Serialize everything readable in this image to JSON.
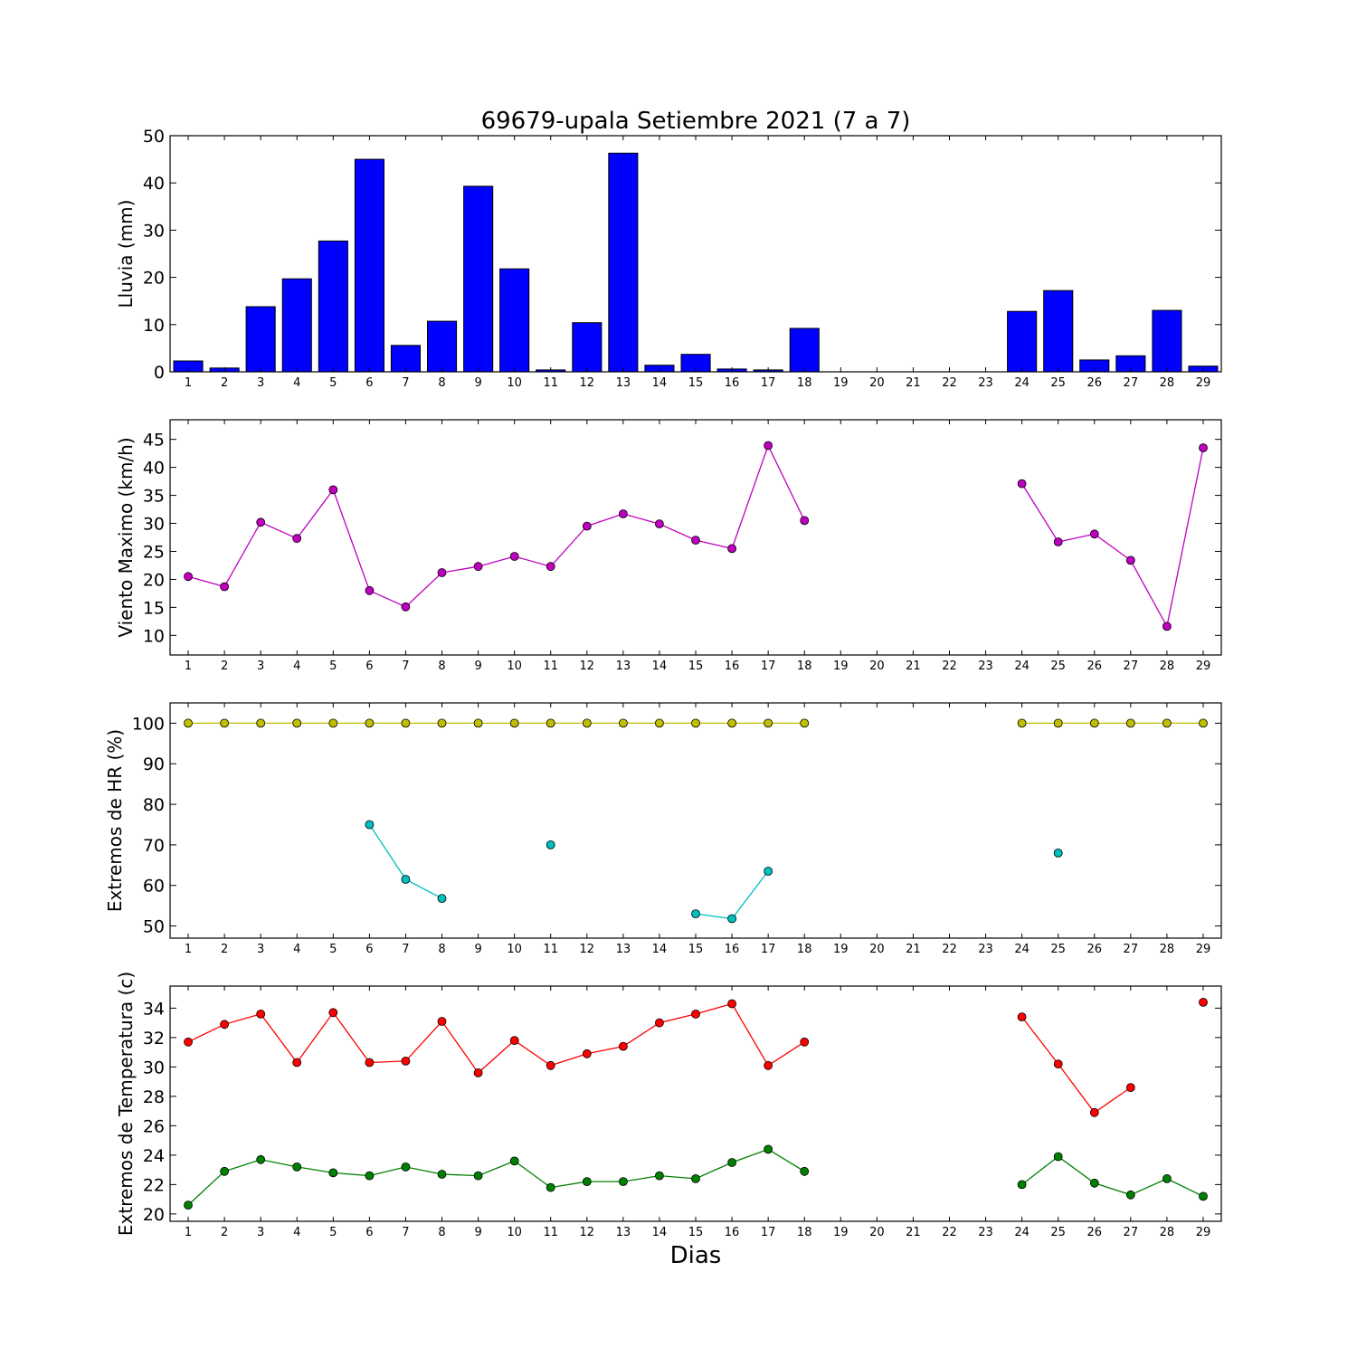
{
  "figure": {
    "title": "69679-upala Setiembre 2021  (7 a 7)",
    "xlabel": "Dias"
  },
  "chart_data": [
    {
      "type": "bar",
      "ylabel": "Lluvia (mm)",
      "ylim": [
        0,
        50
      ],
      "yticks": [
        0,
        10,
        20,
        30,
        40,
        50
      ],
      "x": [
        1,
        2,
        3,
        4,
        5,
        6,
        7,
        8,
        9,
        10,
        11,
        12,
        13,
        14,
        15,
        16,
        17,
        18,
        19,
        20,
        21,
        22,
        23,
        24,
        25,
        26,
        27,
        28,
        29
      ],
      "series": [
        {
          "color": "#0000ff",
          "values": [
            2.3,
            0.8,
            13.8,
            19.7,
            27.7,
            45.0,
            5.6,
            10.7,
            39.3,
            21.8,
            0.4,
            10.4,
            46.3,
            1.4,
            3.7,
            0.6,
            0.4,
            9.2,
            null,
            null,
            null,
            null,
            null,
            12.8,
            17.2,
            2.5,
            3.4,
            13.0,
            1.2
          ]
        }
      ],
      "grid": false
    },
    {
      "type": "line",
      "ylabel": "Viento Maximo (km/h)",
      "ylim": [
        6.5,
        48.5
      ],
      "yticks": [
        10,
        15,
        20,
        25,
        30,
        35,
        40,
        45
      ],
      "x": [
        1,
        2,
        3,
        4,
        5,
        6,
        7,
        8,
        9,
        10,
        11,
        12,
        13,
        14,
        15,
        16,
        17,
        18,
        19,
        20,
        21,
        22,
        23,
        24,
        25,
        26,
        27,
        28,
        29
      ],
      "series": [
        {
          "color": "#bf00bf",
          "values": [
            20.5,
            18.7,
            30.2,
            27.3,
            36.0,
            18.0,
            15.1,
            21.2,
            22.3,
            24.1,
            22.3,
            29.5,
            31.7,
            29.9,
            27.0,
            25.5,
            43.9,
            30.5,
            null,
            null,
            null,
            null,
            null,
            37.1,
            26.7,
            28.1,
            23.4,
            11.6,
            43.5
          ]
        }
      ],
      "grid": false
    },
    {
      "type": "line",
      "ylabel": "Extremos de HR (%)",
      "ylim": [
        47,
        105
      ],
      "yticks": [
        50,
        60,
        70,
        80,
        90,
        100
      ],
      "x": [
        1,
        2,
        3,
        4,
        5,
        6,
        7,
        8,
        9,
        10,
        11,
        12,
        13,
        14,
        15,
        16,
        17,
        18,
        19,
        20,
        21,
        22,
        23,
        24,
        25,
        26,
        27,
        28,
        29
      ],
      "series": [
        {
          "color": "#bfbf00",
          "values": [
            100,
            100,
            100,
            100,
            100,
            100,
            100,
            100,
            100,
            100,
            100,
            100,
            100,
            100,
            100,
            100,
            100,
            100,
            null,
            null,
            null,
            null,
            null,
            100,
            100,
            100,
            100,
            100,
            100
          ]
        },
        {
          "color": "#00bfbf",
          "values": [
            null,
            null,
            null,
            null,
            null,
            75,
            61.5,
            56.8,
            null,
            null,
            70,
            null,
            null,
            null,
            53,
            51.8,
            63.5,
            null,
            null,
            null,
            null,
            null,
            null,
            null,
            68,
            null,
            null,
            null,
            null
          ]
        }
      ],
      "grid": false
    },
    {
      "type": "line",
      "ylabel": "Extremos de Temperatura (c)",
      "ylim": [
        19.5,
        35.5
      ],
      "yticks": [
        20,
        22,
        24,
        26,
        28,
        30,
        32,
        34
      ],
      "x": [
        1,
        2,
        3,
        4,
        5,
        6,
        7,
        8,
        9,
        10,
        11,
        12,
        13,
        14,
        15,
        16,
        17,
        18,
        19,
        20,
        21,
        22,
        23,
        24,
        25,
        26,
        27,
        28,
        29
      ],
      "series": [
        {
          "color": "#ff0000",
          "values": [
            31.7,
            32.9,
            33.6,
            30.3,
            33.7,
            30.3,
            30.4,
            33.1,
            29.6,
            31.8,
            30.1,
            30.9,
            31.4,
            33.0,
            33.6,
            34.3,
            30.1,
            31.7,
            null,
            null,
            null,
            null,
            null,
            33.4,
            30.2,
            26.9,
            28.6,
            null,
            34.4
          ]
        },
        {
          "color": "#008000",
          "values": [
            20.6,
            22.9,
            23.7,
            23.2,
            22.8,
            22.6,
            23.2,
            22.7,
            22.6,
            23.6,
            21.8,
            22.2,
            22.2,
            22.6,
            22.4,
            23.5,
            24.4,
            22.9,
            null,
            null,
            null,
            null,
            null,
            22.0,
            23.9,
            22.1,
            21.3,
            22.4,
            21.2
          ]
        }
      ],
      "grid": false
    }
  ]
}
